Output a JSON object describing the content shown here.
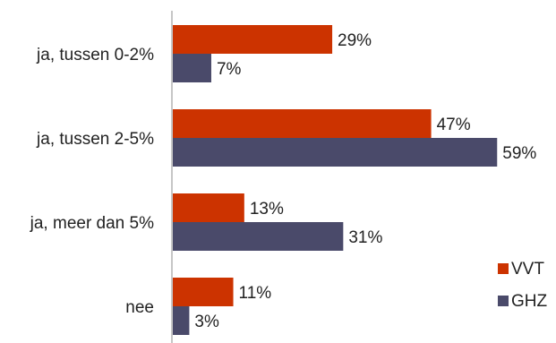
{
  "chart_data": {
    "type": "bar",
    "orientation": "horizontal",
    "categories": [
      "ja, tussen 0-2%",
      "ja, tussen 2-5%",
      "ja, meer dan 5%",
      "nee"
    ],
    "series": [
      {
        "name": "VVT",
        "values": [
          29,
          47,
          13,
          11
        ],
        "labels": [
          "29%",
          "47%",
          "13%",
          "11%"
        ],
        "color": "#CC3300"
      },
      {
        "name": "GHZ",
        "values": [
          7,
          59,
          31,
          3
        ],
        "labels": [
          "7%",
          "59%",
          "31%",
          "3%"
        ],
        "color": "#4A4A6A"
      }
    ],
    "title": "",
    "xlabel": "",
    "ylabel": "",
    "xlim": [
      0,
      70
    ],
    "grid": false,
    "legend": "bottom-right",
    "axis_color": "#8C8C8C"
  }
}
